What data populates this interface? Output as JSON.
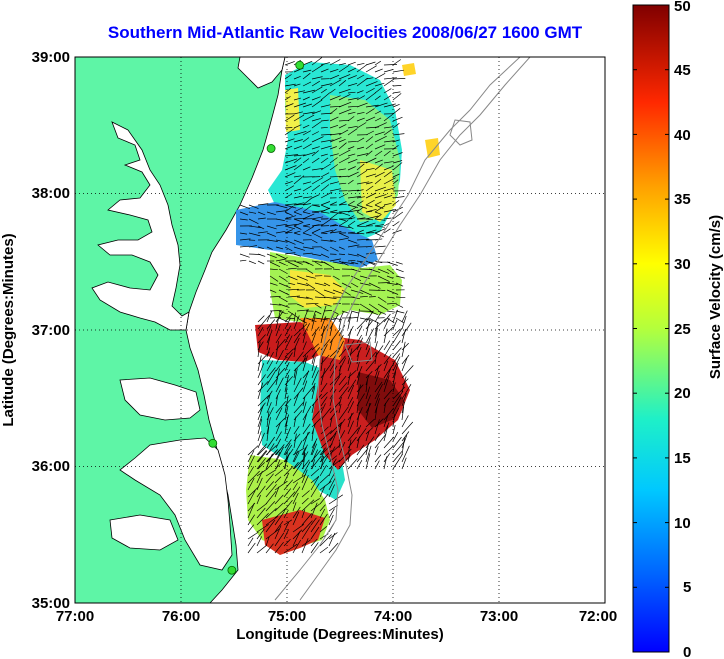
{
  "chart_data": {
    "type": "map",
    "title": "Southern Mid-Atlantic Raw Velocities 2008/06/27 1600 GMT",
    "xlabel": "Longitude (Degrees:Minutes)",
    "ylabel": "Latitude (Degrees:Minutes)",
    "x_ticks": [
      "77:00",
      "76:00",
      "75:00",
      "74:00",
      "73:00",
      "72:00"
    ],
    "y_ticks": [
      "39:00",
      "38:00",
      "37:00",
      "36:00",
      "35:00"
    ],
    "xlim": [
      -77,
      -72
    ],
    "ylim": [
      35,
      39
    ],
    "grid": true,
    "colorbar": {
      "label": "Surface Velocity (cm/s)",
      "range": [
        0,
        50
      ],
      "ticks": [
        "50",
        "45",
        "40",
        "35",
        "30",
        "25",
        "20",
        "15",
        "10",
        "5",
        "0"
      ],
      "colormap": "jet"
    },
    "land_color": "#5ef5a6",
    "water_color": "#ffffff",
    "stations": [
      {
        "lon": -74.88,
        "lat": 38.94
      },
      {
        "lon": -75.15,
        "lat": 38.33
      },
      {
        "lon": -75.7,
        "lat": 36.17
      },
      {
        "lon": -75.52,
        "lat": 35.24
      }
    ]
  }
}
